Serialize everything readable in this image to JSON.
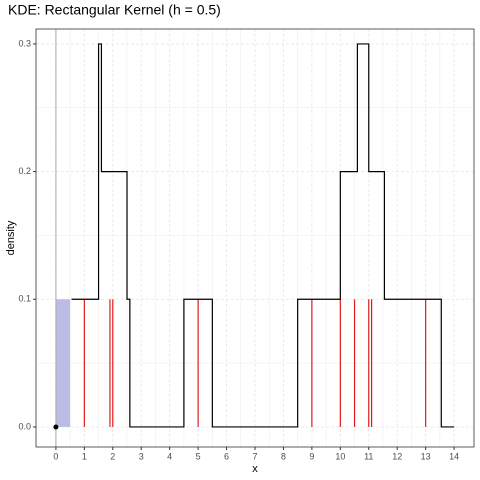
{
  "chart_data": {
    "type": "step",
    "title": "KDE: Rectangular Kernel (h = 0.5)",
    "x_label": "x",
    "y_label": "density",
    "xlim": [
      -0.7,
      14.7
    ],
    "ylim": [
      -0.0157,
      0.3117
    ],
    "xticks": [
      0,
      1,
      2,
      3,
      4,
      5,
      6,
      7,
      8,
      9,
      10,
      11,
      12,
      13,
      14
    ],
    "yticks": [
      {
        "value": 0,
        "label": "0.0"
      },
      0.1,
      0.2,
      0.3
    ],
    "grid": true,
    "line": {
      "color": "#000000",
      "x": [
        0.55,
        0.55,
        1.5,
        1.5,
        1.6,
        1.6,
        2.5,
        2.5,
        2.6,
        2.6,
        4.5,
        4.5,
        5.5,
        5.5,
        8.5,
        8.5,
        10.0,
        10.0,
        10.6,
        10.6,
        11.0,
        11.0,
        11.55,
        11.55,
        12.55,
        12.55,
        13.55,
        13.55,
        14.0
      ],
      "y": [
        0.1,
        0.1,
        0.1,
        0.3,
        0.3,
        0.2,
        0.2,
        0.1,
        0.1,
        0,
        0,
        0.1,
        0.1,
        0,
        0,
        0.1,
        0.1,
        0.2,
        0.2,
        0.3,
        0.3,
        0.2,
        0.2,
        0.1,
        0.1,
        0.1,
        0.1,
        0,
        0
      ]
    },
    "observations": {
      "color": "#e41a1c",
      "height": 0.1,
      "x": [
        1.0,
        1.9,
        2.0,
        5.0,
        9.0,
        10.0,
        10.5,
        11.0,
        11.1,
        13.0
      ]
    },
    "kernel_window": {
      "color": "#bcbde6",
      "x": [
        0,
        0.5
      ],
      "height": 0.1
    },
    "point": {
      "color": "#000000",
      "x": 0,
      "y": 0
    }
  }
}
